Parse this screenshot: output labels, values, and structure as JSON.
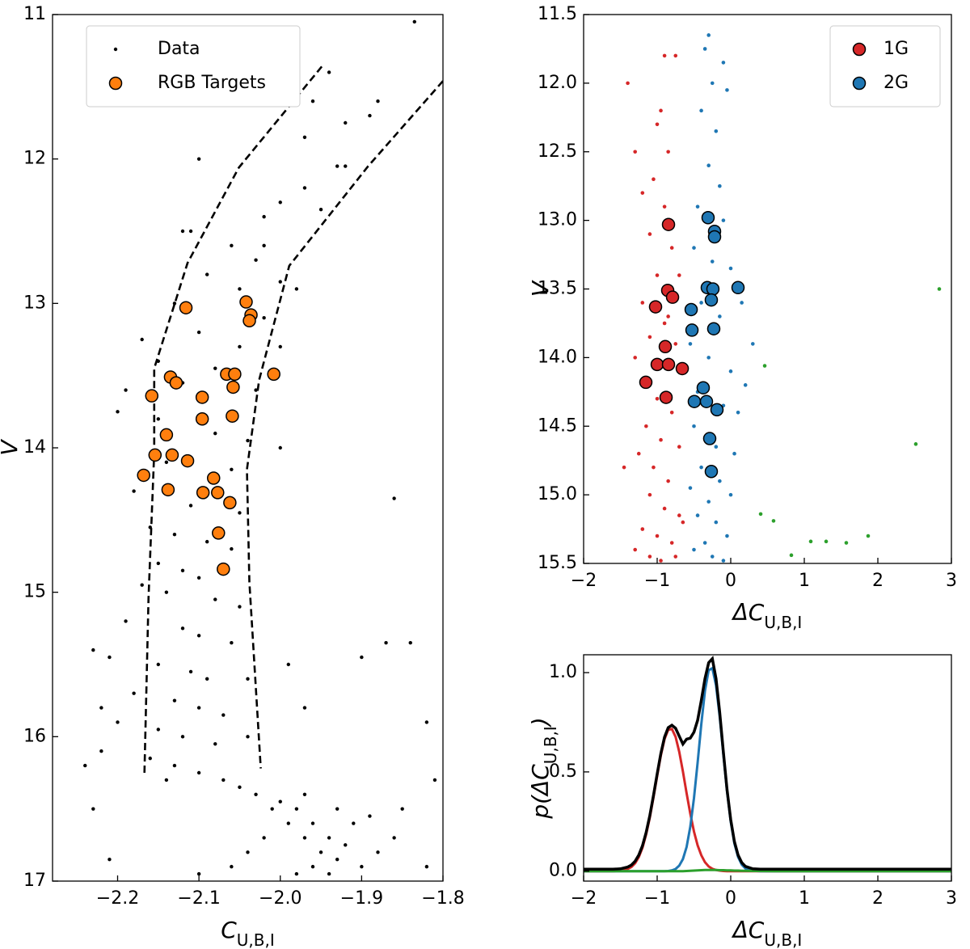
{
  "chart_data": [
    {
      "type": "scatter",
      "xlabel": [
        {
          "text": "C"
        },
        {
          "text": "U,B,I",
          "sub": true
        }
      ],
      "ylabel": [
        {
          "text": "V"
        }
      ],
      "xlim": [
        -2.28,
        -1.8
      ],
      "ylim": [
        17,
        11
      ],
      "xticks": [
        {
          "value": -2.2,
          "label": "−2.2"
        },
        {
          "value": -2.1,
          "label": "−2.1"
        },
        {
          "value": -2.0,
          "label": "−2.0"
        },
        {
          "value": -1.9,
          "label": "−1.9"
        },
        {
          "value": -1.8,
          "label": "−1.8"
        }
      ],
      "yticks": [
        11,
        12,
        13,
        14,
        15,
        16,
        17
      ],
      "legend": "upper left",
      "series": [
        {
          "name": "Data",
          "color": "#000000",
          "size": 2.2,
          "x": [
            -1.835,
            -1.96,
            -1.92,
            -1.89,
            -1.97,
            -1.92,
            -2.1,
            -1.97,
            -2.0,
            -2.02,
            -2.02,
            -2.0,
            -1.98,
            -2.12,
            -2.06,
            -2.03,
            -2.09,
            -2.05,
            -2.13,
            -2.02,
            -2.17,
            -2.1,
            -2.05,
            -2.15,
            -2.08,
            -2.19,
            -2.12,
            -2.03,
            -2.2,
            -2.15,
            -2.08,
            -2.04,
            -2.14,
            -2.06,
            -2.18,
            -2.11,
            -2.05,
            -2.16,
            -2.13,
            -2.09,
            -2.06,
            -2.15,
            -2.12,
            -2.1,
            -2.17,
            -2.14,
            -2.08,
            -2.05,
            -2.19,
            -2.12,
            -2.1,
            -2.06,
            -2.21,
            -2.15,
            -2.11,
            -2.09,
            -2.04,
            -2.18,
            -2.13,
            -2.1,
            -2.07,
            -2.2,
            -2.15,
            -2.12,
            -2.08,
            -2.04,
            -2.22,
            -2.16,
            -2.13,
            -2.1,
            -2.07,
            -2.05,
            -2.14,
            -2.03,
            -2.0,
            -2.01,
            -1.98,
            -1.99,
            -1.96,
            -1.97,
            -1.94,
            -1.95,
            -1.92,
            -1.93,
            -1.96,
            -1.9,
            -1.98,
            -1.94,
            -1.91,
            -1.88,
            -1.86,
            -2.02,
            -2.04,
            -1.97,
            -1.93,
            -1.89,
            -1.85,
            -1.82,
            -2.06,
            -2.1,
            -2.24,
            -2.23,
            -2.21,
            -1.81,
            -1.84,
            -1.87,
            -1.9,
            -1.82,
            -1.86,
            -1.93,
            -1.95,
            -1.88,
            -2.11,
            -1.94,
            -2.0,
            -2.22,
            -2.23,
            -2.0,
            -1.99,
            -1.97
          ],
          "values": [
            11.05,
            11.6,
            11.75,
            11.7,
            11.85,
            12.05,
            12.0,
            12.2,
            12.3,
            12.4,
            12.6,
            12.85,
            12.9,
            12.5,
            12.6,
            12.7,
            12.8,
            12.9,
            13.0,
            13.1,
            13.25,
            13.2,
            13.3,
            13.4,
            13.45,
            13.6,
            13.55,
            13.6,
            13.75,
            13.8,
            13.9,
            13.95,
            14.1,
            14.15,
            14.3,
            14.4,
            14.45,
            14.55,
            14.6,
            14.65,
            14.7,
            14.8,
            14.85,
            14.9,
            14.95,
            15.0,
            15.05,
            15.1,
            15.2,
            15.25,
            15.3,
            15.35,
            15.45,
            15.5,
            15.55,
            15.6,
            15.6,
            15.7,
            15.75,
            15.8,
            15.85,
            15.9,
            15.95,
            16.0,
            16.05,
            16.0,
            16.1,
            16.15,
            16.2,
            16.25,
            16.3,
            16.35,
            16.3,
            16.4,
            16.45,
            16.5,
            16.5,
            16.6,
            16.6,
            16.7,
            16.7,
            16.8,
            16.75,
            16.85,
            16.9,
            16.9,
            16.95,
            16.95,
            16.6,
            16.8,
            16.7,
            16.7,
            16.8,
            16.4,
            16.5,
            16.55,
            16.5,
            16.9,
            16.9,
            16.95,
            16.2,
            16.5,
            16.85,
            16.3,
            15.35,
            15.35,
            15.45,
            15.9,
            14.35,
            12.05,
            12.35,
            11.6,
            12.5,
            11.4,
            13.3,
            15.8,
            15.4,
            14.0,
            15.5,
            15.8
          ]
        },
        {
          "name": "RGB Targets",
          "color": "#ff7f0e",
          "size": 7.5,
          "edge": "#000000",
          "x": [
            -2.116,
            -2.042,
            -2.036,
            -2.038,
            -2.008,
            -2.066,
            -2.056,
            -2.135,
            -2.128,
            -2.158,
            -2.096,
            -2.058,
            -2.096,
            -2.059,
            -2.14,
            -2.154,
            -2.133,
            -2.114,
            -2.168,
            -2.082,
            -2.138,
            -2.095,
            -2.077,
            -2.062,
            -2.076,
            -2.07
          ],
          "values": [
            13.03,
            12.99,
            13.08,
            13.12,
            13.49,
            13.49,
            13.49,
            13.51,
            13.55,
            13.64,
            13.65,
            13.58,
            13.8,
            13.78,
            13.91,
            14.05,
            14.05,
            14.09,
            14.19,
            14.21,
            14.29,
            14.31,
            14.31,
            14.38,
            14.59,
            14.84
          ]
        }
      ],
      "boundaries": [
        {
          "x": [
            -1.949,
            -2.051,
            -2.114,
            -2.155,
            -2.155,
            -2.162,
            -2.167
          ],
          "y": [
            11.36,
            12.06,
            12.72,
            13.45,
            14.03,
            15.04,
            16.25
          ]
        },
        {
          "x": [
            -1.8,
            -1.892,
            -1.989,
            -2.026,
            -2.041,
            -2.038,
            -2.024
          ],
          "y": [
            11.46,
            12.05,
            12.74,
            13.53,
            14.15,
            14.93,
            16.22
          ]
        }
      ]
    },
    {
      "type": "scatter",
      "xlabel": [
        {
          "text": "ΔC"
        },
        {
          "text": "U,B,I",
          "sub": true
        }
      ],
      "ylabel": [
        {
          "text": "V"
        }
      ],
      "xlim": [
        -2,
        3
      ],
      "ylim": [
        15.5,
        11.5
      ],
      "xticks": [
        {
          "value": -2,
          "label": "−2"
        },
        {
          "value": -1,
          "label": "−1"
        },
        0,
        1,
        2,
        3
      ],
      "yticks": [
        {
          "value": 11.5,
          "label": "11.5"
        },
        {
          "value": 12,
          "label": "12.0"
        },
        {
          "value": 12.5,
          "label": "12.5"
        },
        {
          "value": 13,
          "label": "13.0"
        },
        {
          "value": 13.5,
          "label": "13.5"
        },
        {
          "value": 14,
          "label": "14.0"
        },
        {
          "value": 14.5,
          "label": "14.5"
        },
        {
          "value": 15,
          "label": "15.0"
        },
        {
          "value": 15.5,
          "label": "15.5"
        }
      ],
      "legend": "upper right",
      "background_points": [
        {
          "color": "#d62728",
          "size": 2.3,
          "x": [
            -1.4,
            -1.3,
            -1.2,
            -0.9,
            -0.75,
            -0.95,
            -0.85,
            -1.05,
            -0.9,
            -1.1,
            -0.8,
            -1.0,
            -0.7,
            -1.2,
            -0.9,
            -1.1,
            -0.75,
            -1.3,
            -1.0,
            -0.8,
            -1.15,
            -0.95,
            -1.25,
            -0.7,
            -1.05,
            -0.85,
            -1.45,
            -1.1,
            -0.9,
            -0.7,
            -1.2,
            -1.0,
            -0.8,
            -1.1,
            -0.95,
            -0.75,
            -1.3,
            -0.65,
            -1.0,
            -0.85
          ],
          "values": [
            12.0,
            12.5,
            12.8,
            11.8,
            11.8,
            12.2,
            12.5,
            12.7,
            12.9,
            13.1,
            13.2,
            13.4,
            13.4,
            13.6,
            13.75,
            13.85,
            13.9,
            14.0,
            14.3,
            14.4,
            14.5,
            14.6,
            14.7,
            14.65,
            14.8,
            14.9,
            14.8,
            15.0,
            15.1,
            15.15,
            15.25,
            15.3,
            15.35,
            15.45,
            15.48,
            15.45,
            15.4,
            15.2,
            12.3,
            13.7
          ]
        },
        {
          "color": "#1f77b4",
          "size": 2.3,
          "x": [
            -0.3,
            -0.35,
            -0.1,
            -0.25,
            -0.05,
            -0.4,
            -0.2,
            -0.3,
            -0.15,
            -0.45,
            -0.1,
            -0.5,
            -0.25,
            0.0,
            -0.4,
            -0.15,
            0.15,
            -0.55,
            -0.3,
            0.0,
            -0.45,
            -0.1,
            0.1,
            -0.5,
            -0.2,
            0.05,
            -0.4,
            -0.15,
            -0.55,
            -0.3,
            0.0,
            -0.45,
            -0.2,
            -0.05,
            -0.35,
            -0.5,
            -0.25,
            -0.1,
            0.2,
            0.3
          ],
          "values": [
            11.65,
            11.75,
            11.85,
            12.0,
            12.05,
            12.2,
            12.35,
            12.6,
            12.75,
            12.9,
            13.0,
            13.2,
            13.3,
            13.35,
            13.6,
            13.7,
            13.6,
            13.9,
            14.0,
            14.1,
            14.25,
            14.35,
            14.4,
            14.5,
            14.65,
            14.7,
            14.8,
            14.9,
            14.95,
            15.05,
            15.0,
            15.15,
            15.2,
            15.3,
            15.35,
            15.4,
            15.45,
            15.48,
            14.2,
            13.9
          ]
        },
        {
          "color": "#2ca02c",
          "size": 2.3,
          "x": [
            0.462,
            0.407,
            0.582,
            1.088,
            1.297,
            1.571,
            1.868,
            0.824,
            2.516,
            2.835
          ],
          "values": [
            14.06,
            15.14,
            15.19,
            15.34,
            15.34,
            15.35,
            15.3,
            15.44,
            14.63,
            13.5
          ]
        }
      ],
      "series": [
        {
          "name": "1G",
          "color": "#d62728",
          "size": 7.5,
          "edge": "#000000",
          "x": [
            -0.846,
            -0.857,
            -0.791,
            -1.022,
            -0.89,
            -1.0,
            -0.846,
            -0.659,
            -1.154,
            -0.879
          ],
          "values": [
            13.03,
            13.51,
            13.56,
            13.63,
            13.92,
            14.05,
            14.05,
            14.08,
            14.18,
            14.29
          ]
        },
        {
          "name": "2G",
          "color": "#1f77b4",
          "size": 7.5,
          "edge": "#000000",
          "x": [
            -0.308,
            -0.22,
            -0.22,
            -0.319,
            -0.242,
            0.099,
            -0.264,
            -0.538,
            -0.527,
            -0.231,
            -0.374,
            -0.495,
            -0.33,
            -0.187,
            -0.286,
            -0.264
          ],
          "values": [
            12.98,
            13.08,
            13.12,
            13.49,
            13.5,
            13.49,
            13.58,
            13.65,
            13.8,
            13.79,
            14.22,
            14.32,
            14.32,
            14.38,
            14.59,
            14.83
          ]
        }
      ]
    },
    {
      "type": "line",
      "xlabel": [
        {
          "text": "ΔC"
        },
        {
          "text": "U,B,I",
          "sub": true
        }
      ],
      "ylabel": [
        {
          "text": "p(ΔC"
        },
        {
          "text": "U,B,I",
          "sub": true
        },
        {
          "text": ")"
        }
      ],
      "xlim": [
        -2,
        3
      ],
      "ylim": [
        -0.05,
        1.09
      ],
      "xticks": [
        {
          "value": -2,
          "label": "−2"
        },
        {
          "value": -1,
          "label": "−1"
        },
        0,
        1,
        2,
        3
      ],
      "yticks": [
        {
          "value": 0,
          "label": "0.0"
        },
        {
          "value": 0.5,
          "label": "0.5"
        },
        {
          "value": 1,
          "label": "1.0"
        }
      ],
      "x": [
        -2,
        -1.8,
        -1.6,
        -1.5,
        -1.4,
        -1.35,
        -1.3,
        -1.25,
        -1.2,
        -1.15,
        -1.1,
        -1.05,
        -1.0,
        -0.95,
        -0.9,
        -0.85,
        -0.8,
        -0.75,
        -0.7,
        -0.65,
        -0.6,
        -0.55,
        -0.5,
        -0.45,
        -0.4,
        -0.35,
        -0.3,
        -0.25,
        -0.2,
        -0.15,
        -0.1,
        -0.05,
        0,
        0.05,
        0.1,
        0.15,
        0.2,
        0.3,
        0.4,
        0.6,
        0.8,
        1.0,
        1.5,
        2.0,
        2.5,
        3.0
      ],
      "series": [
        {
          "color": "#d62728",
          "values": [
            0,
            0,
            0,
            0.002,
            0.011,
            0.021,
            0.04,
            0.071,
            0.118,
            0.185,
            0.27,
            0.372,
            0.48,
            0.583,
            0.665,
            0.712,
            0.716,
            0.677,
            0.601,
            0.502,
            0.393,
            0.29,
            0.2,
            0.13,
            0.08,
            0.045,
            0.024,
            0.012,
            0.006,
            0.003,
            0.001,
            0,
            0,
            0,
            0,
            0,
            0,
            0,
            0,
            0,
            0,
            0,
            0,
            0,
            0,
            0
          ]
        },
        {
          "color": "#1f77b4",
          "values": [
            0,
            0,
            0,
            0,
            0,
            0,
            0,
            0,
            0,
            0,
            0,
            0,
            0,
            0,
            0,
            0.001,
            0.004,
            0.011,
            0.028,
            0.061,
            0.122,
            0.223,
            0.367,
            0.547,
            0.741,
            0.909,
            1.012,
            1.022,
            0.936,
            0.778,
            0.586,
            0.4,
            0.249,
            0.139,
            0.071,
            0.033,
            0.014,
            0.002,
            0,
            0,
            0,
            0,
            0,
            0,
            0,
            0
          ]
        },
        {
          "color": "#2ca02c",
          "values": [
            0,
            0,
            0,
            0,
            0,
            0,
            0,
            0,
            0,
            0,
            0,
            0,
            0,
            0,
            0,
            0,
            0,
            0,
            0,
            0,
            0.001,
            0.002,
            0.003,
            0.004,
            0.005,
            0.006,
            0.006,
            0.006,
            0.006,
            0.005,
            0.005,
            0.004,
            0.004,
            0.003,
            0.003,
            0.002,
            0.002,
            0.001,
            0.001,
            0,
            0,
            0,
            0,
            0,
            0,
            0
          ]
        },
        {
          "color": "#000000",
          "values": [
            0.01,
            0.01,
            0.01,
            0.012,
            0.021,
            0.031,
            0.05,
            0.081,
            0.128,
            0.195,
            0.28,
            0.382,
            0.49,
            0.593,
            0.675,
            0.723,
            0.735,
            0.72,
            0.68,
            0.64,
            0.665,
            0.67,
            0.7,
            0.76,
            0.86,
            0.97,
            1.05,
            1.07,
            0.97,
            0.8,
            0.6,
            0.41,
            0.259,
            0.149,
            0.081,
            0.043,
            0.024,
            0.012,
            0.01,
            0.01,
            0.01,
            0.01,
            0.01,
            0.01,
            0.01,
            0.01
          ]
        }
      ]
    }
  ]
}
